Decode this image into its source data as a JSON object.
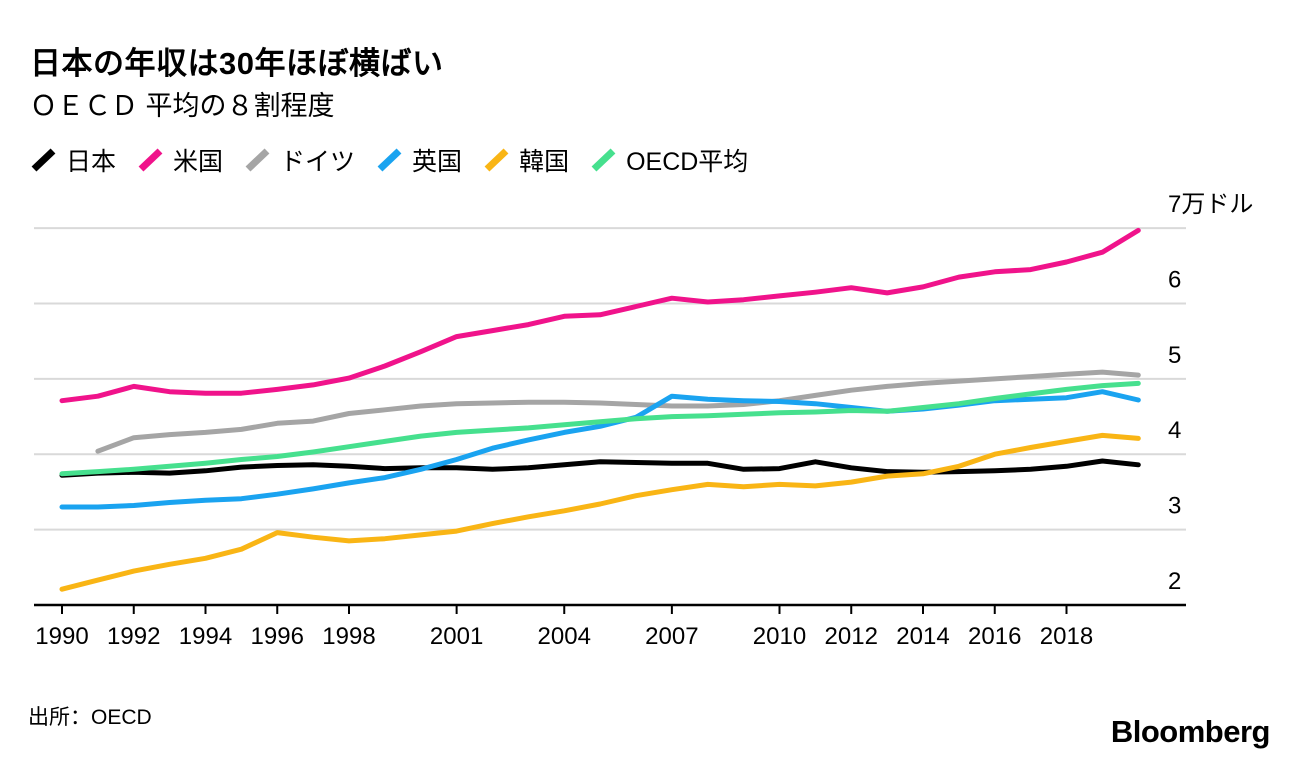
{
  "header": {
    "title": "日本の年収は30年ほぼ横ばい",
    "subtitle": "ＯＥＣＤ 平均の８割程度"
  },
  "source": {
    "label": "出所：OECD"
  },
  "branding": {
    "logo": "Bloomberg"
  },
  "chart_data": {
    "type": "line",
    "unit": "万ドル",
    "unit_label": "7万ドル",
    "ylim": [
      2,
      7
    ],
    "grid": "horizontal",
    "legend_position": "top",
    "colors": {
      "grid": "#d9d9d9",
      "axis": "#000000"
    },
    "x": [
      1990,
      1991,
      1992,
      1993,
      1994,
      1995,
      1996,
      1997,
      1998,
      1999,
      2000,
      2001,
      2002,
      2003,
      2004,
      2005,
      2006,
      2007,
      2008,
      2009,
      2010,
      2011,
      2012,
      2013,
      2014,
      2015,
      2016,
      2017,
      2018,
      2019,
      2020
    ],
    "x_tick_years": [
      1990,
      1992,
      1994,
      1996,
      1998,
      2001,
      2004,
      2007,
      2010,
      2012,
      2014,
      2016,
      2018
    ],
    "x_tick_labels": [
      "1990",
      "1992",
      "1994",
      "1996",
      "1998",
      "2001",
      "2004",
      "2007",
      "2010",
      "2012",
      "2014",
      "2016",
      "2018"
    ],
    "y_ticks": [
      {
        "value": 7,
        "label": "7万ドル"
      },
      {
        "value": 6,
        "label": "6"
      },
      {
        "value": 5,
        "label": "5"
      },
      {
        "value": 4,
        "label": "4"
      },
      {
        "value": 3,
        "label": "3"
      },
      {
        "value": 2,
        "label": "2"
      }
    ],
    "series": [
      {
        "key": "japan",
        "name": "日本",
        "color": "#000000",
        "values": [
          3.72,
          3.75,
          3.76,
          3.75,
          3.78,
          3.83,
          3.85,
          3.86,
          3.84,
          3.81,
          3.82,
          3.82,
          3.8,
          3.82,
          3.86,
          3.9,
          3.89,
          3.88,
          3.88,
          3.8,
          3.81,
          3.9,
          3.82,
          3.77,
          3.76,
          3.77,
          3.78,
          3.8,
          3.84,
          3.91,
          3.86
        ]
      },
      {
        "key": "us",
        "name": "米国",
        "color": "#f0138b",
        "values": [
          4.71,
          4.77,
          4.9,
          4.83,
          4.81,
          4.81,
          4.86,
          4.92,
          5.01,
          5.17,
          5.36,
          5.56,
          5.64,
          5.72,
          5.83,
          5.85,
          5.96,
          6.07,
          6.02,
          6.05,
          6.1,
          6.15,
          6.21,
          6.14,
          6.22,
          6.35,
          6.42,
          6.45,
          6.55,
          6.68,
          6.97
        ]
      },
      {
        "key": "germany",
        "name": "ドイツ",
        "color": "#a5a5a5",
        "values": [
          null,
          4.04,
          4.22,
          4.26,
          4.29,
          4.33,
          4.41,
          4.44,
          4.54,
          4.59,
          4.64,
          4.67,
          4.68,
          4.69,
          4.69,
          4.68,
          4.66,
          4.64,
          4.64,
          4.66,
          4.71,
          4.78,
          4.85,
          4.9,
          4.94,
          4.97,
          5.0,
          5.03,
          5.06,
          5.09,
          5.05
        ]
      },
      {
        "key": "uk",
        "name": "英国",
        "color": "#1aa3f0",
        "values": [
          3.3,
          3.3,
          3.32,
          3.36,
          3.39,
          3.41,
          3.47,
          3.54,
          3.62,
          3.69,
          3.8,
          3.93,
          4.08,
          4.19,
          4.29,
          4.37,
          4.49,
          4.77,
          4.73,
          4.71,
          4.7,
          4.67,
          4.62,
          4.57,
          4.6,
          4.65,
          4.71,
          4.73,
          4.75,
          4.83,
          4.72
        ]
      },
      {
        "key": "korea",
        "name": "韓国",
        "color": "#f9b515",
        "values": [
          2.21,
          2.33,
          2.45,
          2.54,
          2.62,
          2.74,
          2.96,
          2.9,
          2.85,
          2.88,
          2.93,
          2.98,
          3.08,
          3.17,
          3.25,
          3.34,
          3.45,
          3.53,
          3.6,
          3.57,
          3.6,
          3.58,
          3.63,
          3.71,
          3.74,
          3.84,
          4.0,
          4.09,
          4.17,
          4.25,
          4.21
        ]
      },
      {
        "key": "oecd",
        "name": "OECD平均",
        "color": "#46e08e",
        "values": [
          3.74,
          3.77,
          3.8,
          3.84,
          3.88,
          3.93,
          3.97,
          4.03,
          4.1,
          4.17,
          4.24,
          4.29,
          4.32,
          4.35,
          4.39,
          4.43,
          4.47,
          4.5,
          4.51,
          4.53,
          4.55,
          4.56,
          4.58,
          4.57,
          4.62,
          4.67,
          4.74,
          4.8,
          4.86,
          4.91,
          4.94
        ]
      }
    ]
  }
}
